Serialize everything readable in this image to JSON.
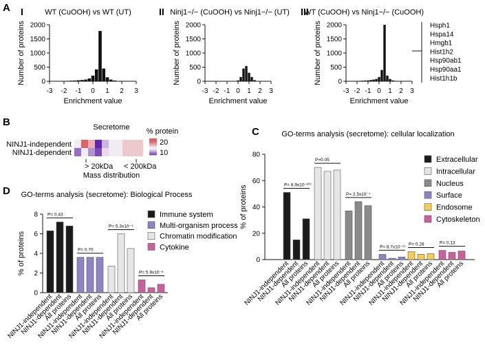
{
  "panel_labels": {
    "A": "A",
    "B": "B",
    "C": "C",
    "D": "D"
  },
  "colors": {
    "black": "#1b1b1b",
    "light": "#e6e6e6",
    "grey": "#8a8a8a",
    "purple": "#8f83c4",
    "yellow": "#f2cd52",
    "pink": "#cc5f9d"
  },
  "chart_data": [
    {
      "id": "A1",
      "type": "bar",
      "roman": "I",
      "title": "WT (CuOOH) vs WT (UT)",
      "xlabel": "Enrichment value",
      "ylabel": "Number of proteins",
      "xlim": [
        -3,
        3
      ],
      "ylim": [
        0,
        2000
      ],
      "xticks": [
        "-3",
        "-2",
        "-1",
        "0",
        "1",
        "2",
        "3"
      ],
      "yticks": [
        "0",
        "500",
        "1000",
        "1500",
        "2000"
      ],
      "bin_width": 0.25,
      "x": [
        -2.25,
        -2.0,
        -1.75,
        -1.5,
        -1.25,
        -1.0,
        -0.75,
        -0.5,
        -0.25,
        0.0,
        0.25,
        0.5,
        0.75,
        1.0,
        1.25,
        1.5,
        1.75,
        2.0
      ],
      "values": [
        5,
        10,
        15,
        20,
        25,
        35,
        45,
        60,
        100,
        200,
        420,
        1780,
        450,
        140,
        60,
        25,
        10,
        5
      ]
    },
    {
      "id": "A2",
      "type": "bar",
      "roman": "II",
      "title": "Ninj1−/− (CuOOH) vs Ninj1−/− (UT)",
      "xlabel": "Enrichment value",
      "ylabel": "Number of proteins",
      "xlim": [
        -3,
        3
      ],
      "ylim": [
        0,
        2000
      ],
      "xticks": [
        "-3",
        "-2",
        "-1",
        "0",
        "1",
        "2",
        "3"
      ],
      "yticks": [
        "0",
        "500",
        "1000",
        "1500",
        "2000"
      ],
      "bin_width": 0.25,
      "x": [
        0.0,
        0.25,
        0.5,
        0.75,
        1.0,
        1.25,
        1.5,
        1.75,
        2.0
      ],
      "values": [
        30,
        150,
        450,
        540,
        300,
        150,
        40,
        10,
        5
      ]
    },
    {
      "id": "A3",
      "type": "bar",
      "roman": "III",
      "title": "WT (CuOOH) vs Ninj1−/− (CuOOH)",
      "xlabel": "Enrichment value",
      "ylabel": "Number of proteins",
      "xlim": [
        -3,
        3
      ],
      "ylim": [
        0,
        2000
      ],
      "xticks": [
        "-3",
        "-2",
        "-1",
        "0",
        "1",
        "2",
        "3"
      ],
      "yticks": [
        "0",
        "500",
        "1000",
        "1500",
        "2000"
      ],
      "bin_width": 0.25,
      "x": [
        -2.0,
        -1.75,
        -1.5,
        -1.25,
        -1.0,
        -0.75,
        -0.5,
        -0.25,
        0.0,
        0.25,
        0.5,
        0.75,
        1.0,
        1.25,
        1.5,
        1.75,
        2.0
      ],
      "values": [
        10,
        15,
        20,
        25,
        30,
        45,
        60,
        80,
        150,
        400,
        2000,
        200,
        80,
        30,
        15,
        10,
        5
      ],
      "annotations": [
        "Hsph1",
        "Hspa14",
        "Hmgb1",
        "Hist1h2",
        "Hsp90ab1",
        "Hsp90aa1",
        "Hist1h1b"
      ]
    },
    {
      "id": "B",
      "type": "heatmap",
      "title": "Secretome",
      "legend_title": "% protein",
      "rows": [
        "NINJ1-independent",
        "NINJ1-dependent"
      ],
      "scale_ticks": [
        "20",
        "10"
      ],
      "left_label": "> 20kDa",
      "right_label": "< 200kDa",
      "xlabel": "Mass distribution",
      "values": [
        [
          14,
          20,
          17,
          8,
          12,
          14,
          15,
          16,
          16,
          16
        ],
        [
          10,
          15,
          11,
          9,
          13,
          15,
          15,
          16,
          16,
          16
        ]
      ]
    },
    {
      "id": "C",
      "type": "bar",
      "title": "GO-terms analysis (secretome): cellular localization",
      "ylabel": "% of proteins",
      "ylim": [
        0,
        80
      ],
      "yticks": [
        "0",
        "20",
        "40",
        "60",
        "80"
      ],
      "groups": [
        "NINJ1-independent",
        "NINJ1-dependent",
        "All proteins"
      ],
      "series": [
        {
          "name": "Extracellular",
          "color_key": "black",
          "values": [
            51,
            15,
            31
          ],
          "pval": "P= 8.9x10⁻²⁰⁷"
        },
        {
          "name": "Intracellular",
          "color_key": "light",
          "values": [
            70,
            67,
            68
          ],
          "pval": "P=0.05"
        },
        {
          "name": "Nucleus",
          "color_key": "grey",
          "values": [
            37,
            44,
            41
          ],
          "pval": "P= 2.5x10⁻⁴"
        },
        {
          "name": "Surface",
          "color_key": "purple",
          "values": [
            4,
            1,
            2
          ],
          "pval": "P= 8.7x10⁻¹¹"
        },
        {
          "name": "Endosome",
          "color_key": "yellow",
          "values": [
            6,
            4,
            4.5
          ],
          "pval": "P= 0.28"
        },
        {
          "name": "Cytoskeleton",
          "color_key": "pink",
          "values": [
            7,
            5.5,
            6.5
          ],
          "pval": "P= 0.13"
        }
      ]
    },
    {
      "id": "D",
      "type": "bar",
      "title": "GO-terms analysis (secretome): Biological Process",
      "ylabel": "% of proteins",
      "ylim": [
        0,
        8
      ],
      "yticks": [
        "0",
        "2",
        "4",
        "6",
        "8"
      ],
      "groups": [
        "NINJ1-independent",
        "NINJ1-dependent",
        "All proteins"
      ],
      "series": [
        {
          "name": "Immune system",
          "color_key": "black",
          "values": [
            6.3,
            7.2,
            6.8
          ],
          "pval": "P= 0.43"
        },
        {
          "name": "Multi-organism process",
          "color_key": "purple",
          "values": [
            3.6,
            3.6,
            3.6
          ],
          "pval": "P= 0.70"
        },
        {
          "name": "Chromatin modification",
          "color_key": "light",
          "values": [
            2.7,
            6.0,
            4.5
          ],
          "pval": "P= 5.3x10⁻⁴"
        },
        {
          "name": "Cytokine",
          "color_key": "pink",
          "values": [
            1.3,
            0.5,
            0.85
          ],
          "pval": "P= 5.9x10⁻⁶"
        }
      ]
    }
  ]
}
